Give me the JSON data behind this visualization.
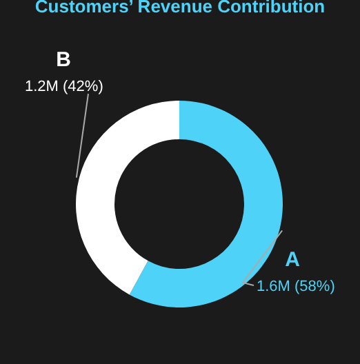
{
  "chart_data": {
    "type": "donut",
    "title": "Customers’ Revenue Contribution",
    "categories": [
      "A",
      "B"
    ],
    "values": [
      58,
      42
    ],
    "colors": [
      "#4fd2f7",
      "#ffffff"
    ],
    "value_labels": [
      "1.6M (58%)",
      "1.2M (42%)"
    ],
    "legend": false
  }
}
